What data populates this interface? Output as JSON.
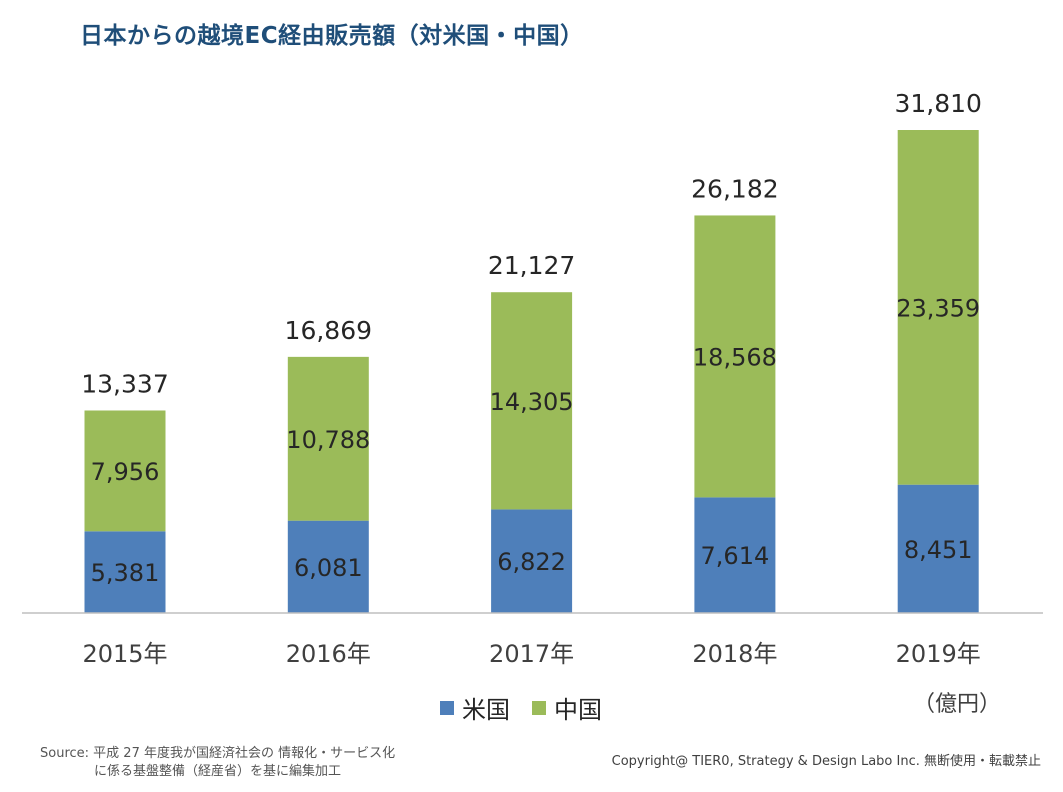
{
  "title": "日本からの越境EC経由販売額（対米国・中国）",
  "unit_label": "（億円）",
  "source": {
    "prefix": "Source:",
    "line1": "平成 27 年度我が国経済社会の 情報化・サービス化",
    "line2": "に係る基盤整備（経産省）を基に編集加工"
  },
  "copyright": "Copyright@ TIER0, Strategy & Design Labo Inc.  無断使用・転載禁止",
  "colors": {
    "us": "#4e7fba",
    "cn": "#9bbb59",
    "axis": "#bfbfbf"
  },
  "chart_data": {
    "type": "bar",
    "stacked": true,
    "categories": [
      "2015年",
      "2016年",
      "2017年",
      "2018年",
      "2019年"
    ],
    "series": [
      {
        "name": "米国",
        "values": [
          5381,
          6081,
          6822,
          7614,
          8451
        ]
      },
      {
        "name": "中国",
        "values": [
          7956,
          10788,
          14305,
          18568,
          23359
        ]
      }
    ],
    "total_labels": [
      "13,337",
      "16,869",
      "21,127",
      "26,182",
      "31,810"
    ],
    "segment_labels": [
      [
        "5,381",
        "6,081",
        "6,822",
        "7,614",
        "8,451"
      ],
      [
        "7,956",
        "10,788",
        "14,305",
        "18,568",
        "23,359"
      ]
    ],
    "ylim": [
      0,
      31810
    ],
    "legend_position": "bottom",
    "grid": false
  }
}
